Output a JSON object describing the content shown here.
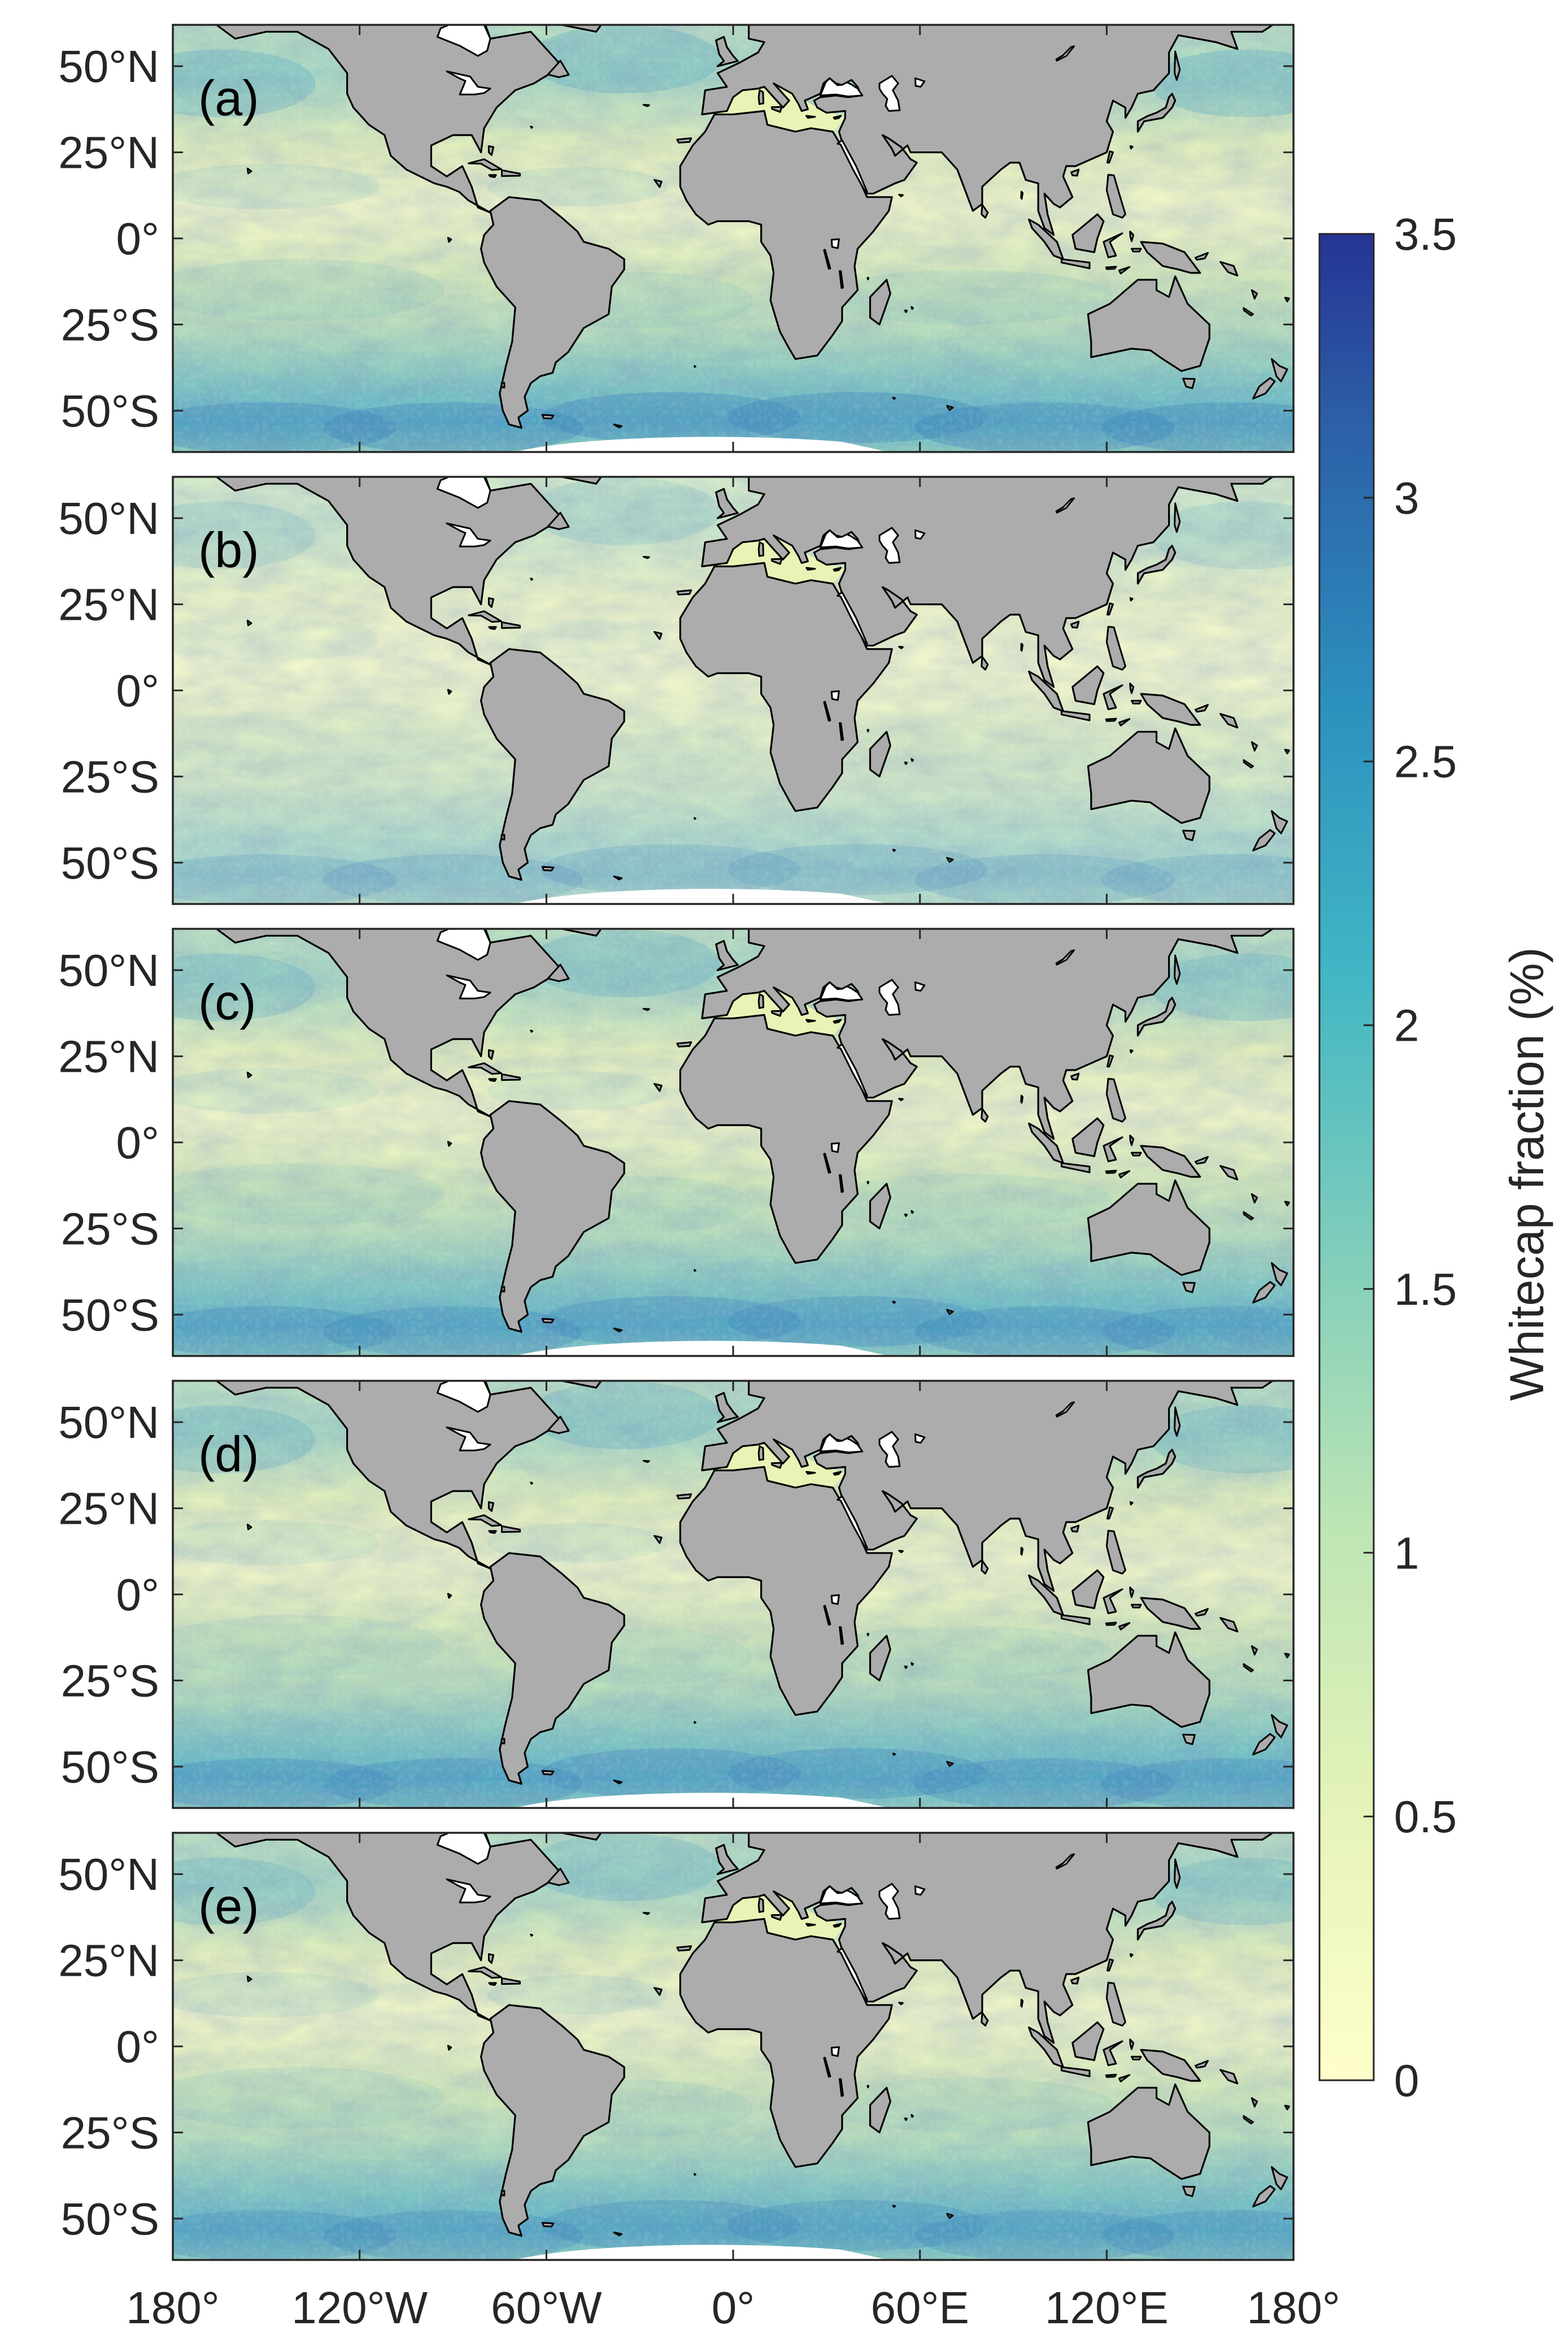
{
  "figure": {
    "panels": [
      {
        "label": "(a)",
        "variant": 0
      },
      {
        "label": "(b)",
        "variant": 1
      },
      {
        "label": "(c)",
        "variant": 2
      },
      {
        "label": "(d)",
        "variant": 3
      },
      {
        "label": "(e)",
        "variant": 4
      }
    ],
    "latitude_ticks": [
      {
        "lat": 50,
        "label": "50°N"
      },
      {
        "lat": 25,
        "label": "25°N"
      },
      {
        "lat": 0,
        "label": "0°"
      },
      {
        "lat": -25,
        "label": "25°S"
      },
      {
        "lat": -50,
        "label": "50°S"
      }
    ],
    "longitude_ticks": [
      {
        "lon": -180,
        "label": "180°"
      },
      {
        "lon": -120,
        "label": "120°W"
      },
      {
        "lon": -60,
        "label": "60°W"
      },
      {
        "lon": 0,
        "label": "0°"
      },
      {
        "lon": 60,
        "label": "60°E"
      },
      {
        "lon": 120,
        "label": "120°E"
      },
      {
        "lon": 180,
        "label": "180°"
      }
    ],
    "lat_range": [
      -62,
      62
    ],
    "lon_range": [
      -180,
      180
    ],
    "colors": {
      "land": "#acacac",
      "coast": "#000000",
      "low": "#ffffcc",
      "mid": "#7fcdbb",
      "high": "#253494"
    },
    "colorbar": {
      "title": "Whitecap fraction (%)",
      "min": 0,
      "max": 3.5,
      "ticks": [
        {
          "value": 0,
          "label": "0"
        },
        {
          "value": 0.5,
          "label": "0.5"
        },
        {
          "value": 1,
          "label": "1"
        },
        {
          "value": 1.5,
          "label": "1.5"
        },
        {
          "value": 2,
          "label": "2"
        },
        {
          "value": 2.5,
          "label": "2.5"
        },
        {
          "value": 3,
          "label": "3"
        },
        {
          "value": 3.5,
          "label": "3.5"
        }
      ]
    }
  }
}
